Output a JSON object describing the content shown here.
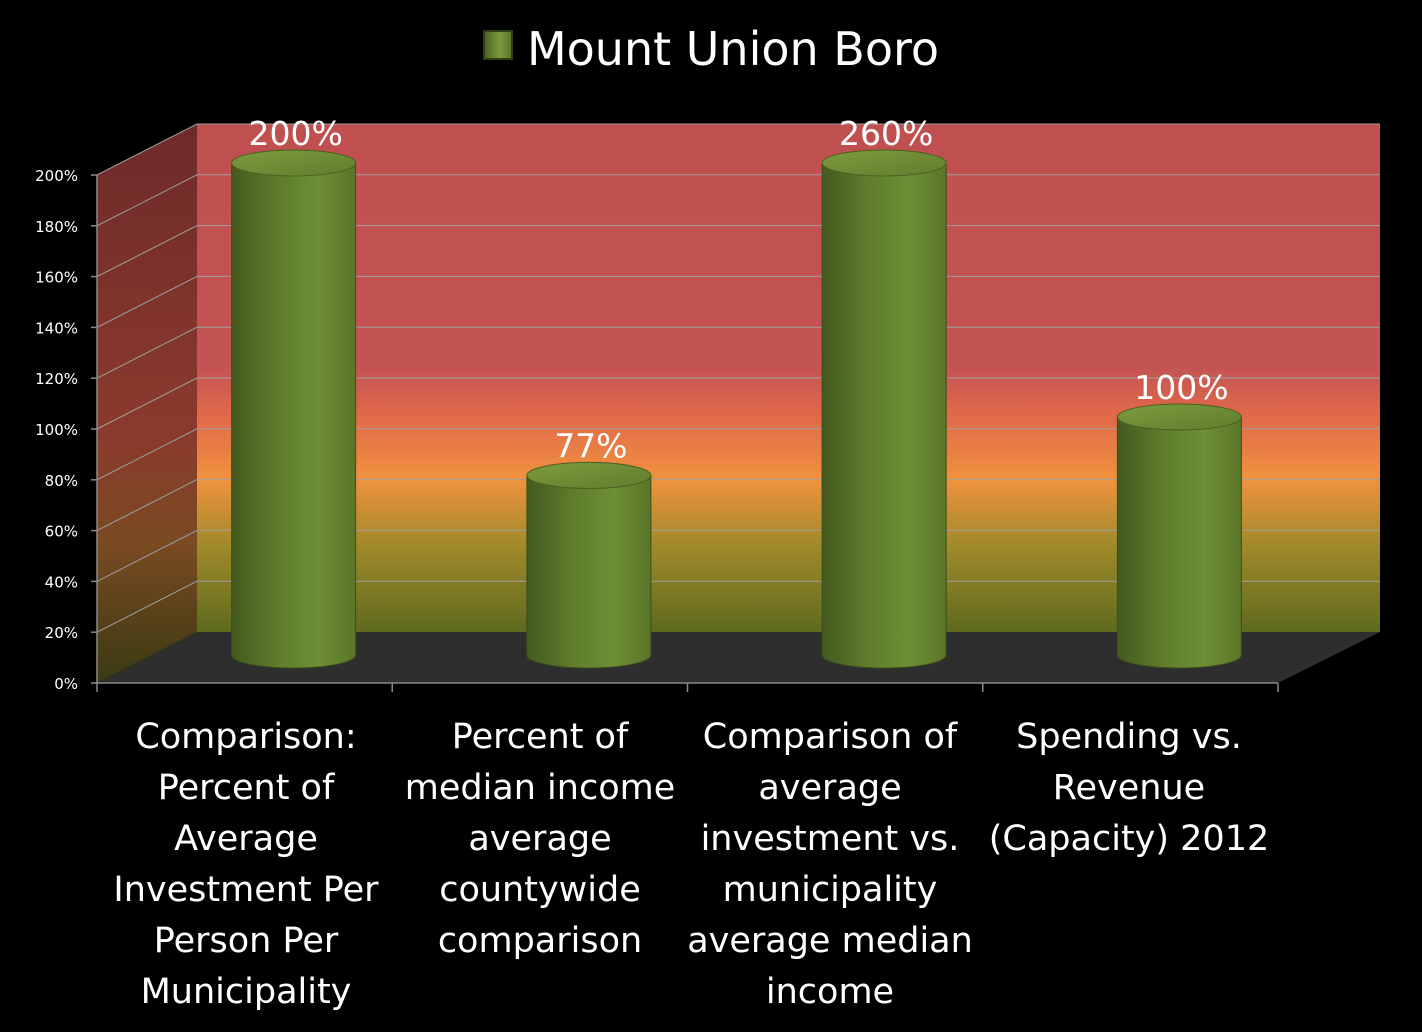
{
  "chart_data": {
    "type": "bar",
    "style": "3d-cylinder",
    "series": [
      {
        "name": "Mount Union Boro",
        "color": "#6b8a33",
        "values": [
          200,
          77,
          260,
          100
        ],
        "value_labels": [
          "200%",
          "77%",
          "260%",
          "100%"
        ]
      }
    ],
    "categories": [
      "Comparison: Percent of Average Investment Per Person Per Municipality",
      "Percent of median income average countywide comparison",
      "Comparison of average investment vs. municipality average median income",
      "Spending vs. Revenue (Capacity) 2012"
    ],
    "category_lines": [
      [
        "Comparison:",
        "Percent of",
        "Average",
        "Investment Per",
        "Person Per",
        "Municipality"
      ],
      [
        "Percent of",
        "median income",
        "average",
        "countywide",
        "comparison"
      ],
      [
        "Comparison of",
        "average",
        "investment vs.",
        "municipality",
        "average median",
        "income"
      ],
      [
        "Spending vs.",
        "Revenue",
        "(Capacity) 2012"
      ]
    ],
    "y_ticks": [
      "0%",
      "20%",
      "40%",
      "60%",
      "80%",
      "100%",
      "120%",
      "140%",
      "160%",
      "180%",
      "200%"
    ],
    "ylim": [
      0,
      200
    ],
    "y_step": 20,
    "grid": true,
    "legend": "top-center",
    "background_gradient": [
      "#5e6a1e",
      "#a08a2a",
      "#f0923e",
      "#e0684a",
      "#c45454",
      "#c05050"
    ],
    "colors": {
      "background": "#000000",
      "floor": "#2e2e2e",
      "text": "#ffffff"
    }
  }
}
